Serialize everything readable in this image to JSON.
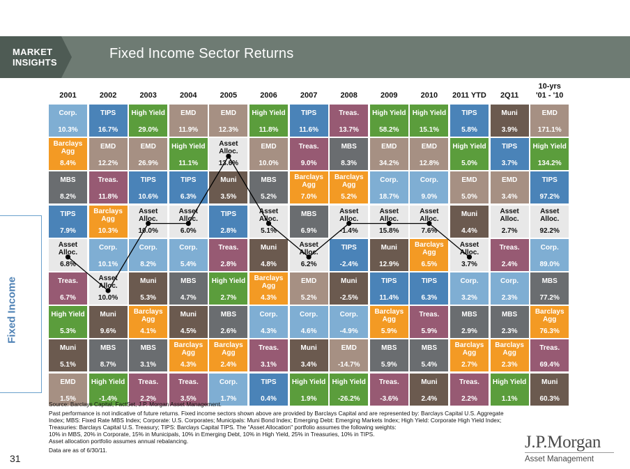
{
  "header": {
    "brand_line1": "MARKET",
    "brand_line2": "INSIGHTS",
    "title": "Fixed Income Sector Returns"
  },
  "side_tab": "Fixed Income",
  "page_number": "31",
  "logo": {
    "name": "J.P.Morgan",
    "sub": "Asset Management"
  },
  "colors": {
    "Corp.": "#7faed3",
    "TIPS": "#4a83b8",
    "High Yield": "#5b9d3c",
    "EMD": "#a69083",
    "Treas.": "#975a73",
    "Muni": "#6b5a4f",
    "MBS": "#6a6d70",
    "Barclays Agg": "#f39a24",
    "Asset Alloc.": "#e8e8e8"
  },
  "chart_data": {
    "type": "table",
    "columns": [
      "2001",
      "2002",
      "2003",
      "2004",
      "2005",
      "2006",
      "2007",
      "2008",
      "2009",
      "2010",
      "2011 YTD",
      "2Q11",
      "10-yrs '01 - '10"
    ],
    "rows": [
      [
        {
          "l": "Corp.",
          "v": "10.3%"
        },
        {
          "l": "TIPS",
          "v": "16.7%"
        },
        {
          "l": "High Yield",
          "v": "29.0%"
        },
        {
          "l": "EMD",
          "v": "11.9%"
        },
        {
          "l": "EMD",
          "v": "12.3%"
        },
        {
          "l": "High Yield",
          "v": "11.8%"
        },
        {
          "l": "TIPS",
          "v": "11.6%"
        },
        {
          "l": "Treas.",
          "v": "13.7%"
        },
        {
          "l": "High Yield",
          "v": "58.2%"
        },
        {
          "l": "High Yield",
          "v": "15.1%"
        },
        {
          "l": "TIPS",
          "v": "5.8%"
        },
        {
          "l": "Muni",
          "v": "3.9%"
        },
        {
          "l": "EMD",
          "v": "171.1%"
        }
      ],
      [
        {
          "l": "Barclays Agg",
          "v": "8.4%"
        },
        {
          "l": "EMD",
          "v": "12.2%"
        },
        {
          "l": "EMD",
          "v": "26.9%"
        },
        {
          "l": "High Yield",
          "v": "11.1%"
        },
        {
          "l": "Asset Alloc.",
          "v": "13.6%"
        },
        {
          "l": "EMD",
          "v": "10.0%"
        },
        {
          "l": "Treas.",
          "v": "9.0%"
        },
        {
          "l": "MBS",
          "v": "8.3%"
        },
        {
          "l": "EMD",
          "v": "34.2%"
        },
        {
          "l": "EMD",
          "v": "12.8%"
        },
        {
          "l": "High Yield",
          "v": "5.0%"
        },
        {
          "l": "TIPS",
          "v": "3.7%"
        },
        {
          "l": "High Yield",
          "v": "134.2%"
        }
      ],
      [
        {
          "l": "MBS",
          "v": "8.2%"
        },
        {
          "l": "Treas.",
          "v": "11.8%"
        },
        {
          "l": "TIPS",
          "v": "10.6%"
        },
        {
          "l": "TIPS",
          "v": "6.3%"
        },
        {
          "l": "Muni",
          "v": "3.5%"
        },
        {
          "l": "MBS",
          "v": "5.2%"
        },
        {
          "l": "Barclays Agg",
          "v": "7.0%"
        },
        {
          "l": "Barclays Agg",
          "v": "5.2%"
        },
        {
          "l": "Corp.",
          "v": "18.7%"
        },
        {
          "l": "Corp.",
          "v": "9.0%"
        },
        {
          "l": "EMD",
          "v": "5.0%"
        },
        {
          "l": "EMD",
          "v": "3.4%"
        },
        {
          "l": "TIPS",
          "v": "97.2%"
        }
      ],
      [
        {
          "l": "TIPS",
          "v": "7.9%"
        },
        {
          "l": "Barclays Agg",
          "v": "10.3%"
        },
        {
          "l": "Asset Alloc.",
          "v": "10.0%"
        },
        {
          "l": "Asset Alloc.",
          "v": "6.0%"
        },
        {
          "l": "TIPS",
          "v": "2.8%"
        },
        {
          "l": "Asset Alloc.",
          "v": "5.1%"
        },
        {
          "l": "MBS",
          "v": "6.9%"
        },
        {
          "l": "Asset Alloc.",
          "v": "-1.4%"
        },
        {
          "l": "Asset Alloc.",
          "v": "15.8%"
        },
        {
          "l": "Asset Alloc.",
          "v": "7.6%"
        },
        {
          "l": "Muni",
          "v": "4.4%"
        },
        {
          "l": "Asset Alloc.",
          "v": "2.7%"
        },
        {
          "l": "Asset Alloc.",
          "v": "92.2%"
        }
      ],
      [
        {
          "l": "Asset Alloc.",
          "v": "6.8%"
        },
        {
          "l": "Corp.",
          "v": "10.1%"
        },
        {
          "l": "Corp.",
          "v": "8.2%"
        },
        {
          "l": "Corp.",
          "v": "5.4%"
        },
        {
          "l": "Treas.",
          "v": "2.8%"
        },
        {
          "l": "Muni",
          "v": "4.8%"
        },
        {
          "l": "Asset Alloc.",
          "v": "6.2%"
        },
        {
          "l": "TIPS",
          "v": "-2.4%"
        },
        {
          "l": "Muni",
          "v": "12.9%"
        },
        {
          "l": "Barclays Agg",
          "v": "6.5%"
        },
        {
          "l": "Asset Alloc.",
          "v": "3.7%"
        },
        {
          "l": "Treas.",
          "v": "2.4%"
        },
        {
          "l": "Corp.",
          "v": "89.0%"
        }
      ],
      [
        {
          "l": "Treas.",
          "v": "6.7%"
        },
        {
          "l": "Asset Alloc.",
          "v": "10.0%"
        },
        {
          "l": "Muni",
          "v": "5.3%"
        },
        {
          "l": "MBS",
          "v": "4.7%"
        },
        {
          "l": "High Yield",
          "v": "2.7%"
        },
        {
          "l": "Barclays Agg",
          "v": "4.3%"
        },
        {
          "l": "EMD",
          "v": "5.2%"
        },
        {
          "l": "Muni",
          "v": "-2.5%"
        },
        {
          "l": "TIPS",
          "v": "11.4%"
        },
        {
          "l": "TIPS",
          "v": "6.3%"
        },
        {
          "l": "Corp.",
          "v": "3.2%"
        },
        {
          "l": "Corp.",
          "v": "2.3%"
        },
        {
          "l": "MBS",
          "v": "77.2%"
        }
      ],
      [
        {
          "l": "High Yield",
          "v": "5.3%"
        },
        {
          "l": "Muni",
          "v": "9.6%"
        },
        {
          "l": "Barclays Agg",
          "v": "4.1%"
        },
        {
          "l": "Muni",
          "v": "4.5%"
        },
        {
          "l": "MBS",
          "v": "2.6%"
        },
        {
          "l": "Corp.",
          "v": "4.3%"
        },
        {
          "l": "Corp.",
          "v": "4.6%"
        },
        {
          "l": "Corp.",
          "v": "-4.9%"
        },
        {
          "l": "Barclays Agg",
          "v": "5.9%"
        },
        {
          "l": "Treas.",
          "v": "5.9%"
        },
        {
          "l": "MBS",
          "v": "2.9%"
        },
        {
          "l": "MBS",
          "v": "2.3%"
        },
        {
          "l": "Barclays Agg",
          "v": "76.3%"
        }
      ],
      [
        {
          "l": "Muni",
          "v": "5.1%"
        },
        {
          "l": "MBS",
          "v": "8.7%"
        },
        {
          "l": "MBS",
          "v": "3.1%"
        },
        {
          "l": "Barclays Agg",
          "v": "4.3%"
        },
        {
          "l": "Barclays Agg",
          "v": "2.4%"
        },
        {
          "l": "Treas.",
          "v": "3.1%"
        },
        {
          "l": "Muni",
          "v": "3.4%"
        },
        {
          "l": "EMD",
          "v": "-14.7%"
        },
        {
          "l": "MBS",
          "v": "5.9%"
        },
        {
          "l": "MBS",
          "v": "5.4%"
        },
        {
          "l": "Barclays Agg",
          "v": "2.7%"
        },
        {
          "l": "Barclays Agg",
          "v": "2.3%"
        },
        {
          "l": "Treas.",
          "v": "69.4%"
        }
      ],
      [
        {
          "l": "EMD",
          "v": "1.5%"
        },
        {
          "l": "High Yield",
          "v": "-1.4%"
        },
        {
          "l": "Treas.",
          "v": "2.2%"
        },
        {
          "l": "Treas.",
          "v": "3.5%"
        },
        {
          "l": "Corp.",
          "v": "1.7%"
        },
        {
          "l": "TIPS",
          "v": "0.4%"
        },
        {
          "l": "High Yield",
          "v": "1.9%"
        },
        {
          "l": "High Yield",
          "v": "-26.2%"
        },
        {
          "l": "Treas.",
          "v": "-3.6%"
        },
        {
          "l": "Muni",
          "v": "2.4%"
        },
        {
          "l": "Treas.",
          "v": "2.2%"
        },
        {
          "l": "High Yield",
          "v": "1.1%"
        },
        {
          "l": "Muni",
          "v": "60.3%"
        }
      ]
    ],
    "asset_alloc_rank": [
      5,
      6,
      4,
      4,
      2,
      4,
      5,
      4,
      4,
      4,
      5
    ]
  },
  "footnotes": {
    "source": "Source: Barclays Capital, FactSet, J.P. Morgan Asset Management.",
    "lines": [
      "Past performance is not indicative of future returns. Fixed income sectors shown above are provided by Barclays Capital and are represented by: Barclays Capital U.S. Aggregate",
      "Index; MBS: Fixed Rate MBS Index; Corporate: U.S. Corporates; Municipals: Muni Bond Index; Emerging Debt: Emerging Markets Index; High Yield: Corporate High Yield Index;",
      "Treasuries: Barclays Capital U.S. Treasury; TIPS: Barclays Capital TIPS. The \"Asset Allocation\" portfolio assumes the following weights:",
      "10% in MBS, 20% in Corporate, 15% in Municipals, 10% in Emerging Debt, 10% in High Yield, 25% in Treasuries, 10% in TIPS.",
      "Asset allocation portfolio assumes annual rebalancing."
    ],
    "date": "Data are as of 6/30/11."
  }
}
